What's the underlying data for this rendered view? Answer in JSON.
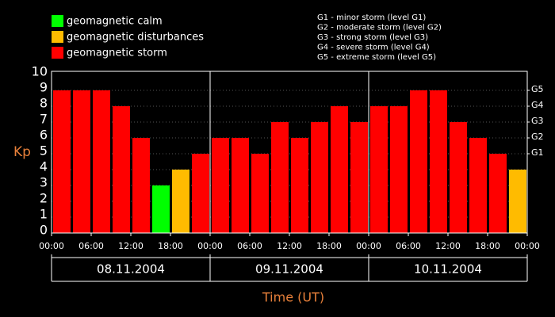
{
  "chart_data": {
    "type": "bar",
    "y_label": "Kp",
    "x_label": "Time (UT)",
    "values": [
      9,
      9,
      9,
      8,
      6,
      3,
      4,
      5,
      6,
      6,
      5,
      7,
      6,
      7,
      8,
      7,
      8,
      8,
      9,
      9,
      7,
      6,
      5,
      4
    ],
    "colors": [
      "#ff0000",
      "#ff0000",
      "#ff0000",
      "#ff0000",
      "#ff0000",
      "#00ff00",
      "#ffbb00",
      "#ff0000",
      "#ff0000",
      "#ff0000",
      "#ff0000",
      "#ff0000",
      "#ff0000",
      "#ff0000",
      "#ff0000",
      "#ff0000",
      "#ff0000",
      "#ff0000",
      "#ff0000",
      "#ff0000",
      "#ff0000",
      "#ff0000",
      "#ff0000",
      "#ffbb00"
    ],
    "ylim": [
      0,
      10
    ],
    "yticks": [
      0,
      1,
      2,
      3,
      4,
      5,
      6,
      7,
      8,
      9,
      10
    ],
    "y2ticks": [
      {
        "value": 5,
        "label": "G1"
      },
      {
        "value": 6,
        "label": "G2"
      },
      {
        "value": 7,
        "label": "G3"
      },
      {
        "value": 8,
        "label": "G4"
      },
      {
        "value": 9,
        "label": "G5"
      }
    ],
    "xlim": [
      0,
      72
    ],
    "xticks": [
      {
        "value": 0,
        "label": "00:00"
      },
      {
        "value": 6,
        "label": "06:00"
      },
      {
        "value": 12,
        "label": "12:00"
      },
      {
        "value": 18,
        "label": "18:00"
      },
      {
        "value": 24,
        "label": "00:00"
      },
      {
        "value": 30,
        "label": "06:00"
      },
      {
        "value": 36,
        "label": "12:00"
      },
      {
        "value": 42,
        "label": "18:00"
      },
      {
        "value": 48,
        "label": "00:00"
      },
      {
        "value": 54,
        "label": "06:00"
      },
      {
        "value": 60,
        "label": "12:00"
      },
      {
        "value": 66,
        "label": "18:00"
      },
      {
        "value": 72,
        "label": "00:00"
      }
    ],
    "days": [
      "08.11.2004",
      "09.11.2004",
      "10.11.2004"
    ],
    "grid": true,
    "legend": [
      {
        "name": "geomagnetic calm",
        "color": "#00ff00"
      },
      {
        "name": "geomagnetic disturbances",
        "color": "#ffbb00"
      },
      {
        "name": "geomagnetic storm",
        "color": "#ff0000"
      }
    ],
    "storm_levels": [
      "G1 - minor storm (level G1)",
      "G2 - moderate storm (level G2)",
      "G3 - strong storm (level G3)",
      "G4 - severe storm (level G4)",
      "G5 - extreme storm (level G5)"
    ]
  }
}
